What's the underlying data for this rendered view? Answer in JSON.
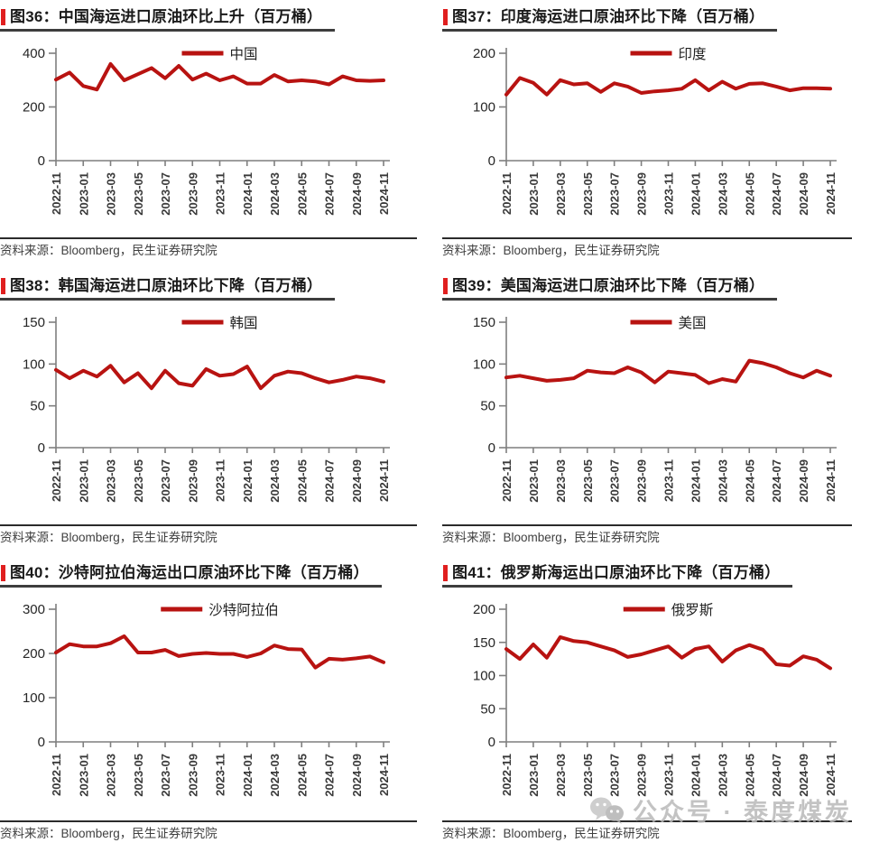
{
  "watermark": {
    "icon": "wechat-icon",
    "text": "公众号 · 泰度煤炭"
  },
  "x_months": [
    "2022-11",
    "2022-12",
    "2023-01",
    "2023-02",
    "2023-03",
    "2023-04",
    "2023-05",
    "2023-06",
    "2023-07",
    "2023-08",
    "2023-09",
    "2023-10",
    "2023-11",
    "2023-12",
    "2024-01",
    "2024-02",
    "2024-03",
    "2024-04",
    "2024-05",
    "2024-06",
    "2024-07",
    "2024-08",
    "2024-09",
    "2024-10",
    "2024-11"
  ],
  "x_visible_tick_labels": [
    "2022-11",
    "2023-01",
    "2023-03",
    "2023-05",
    "2023-07",
    "2023-09",
    "2023-11",
    "2024-01",
    "2024-03",
    "2024-05",
    "2024-07",
    "2024-09",
    "2024-11"
  ],
  "chart_data": [
    {
      "type": "line",
      "title": "图36：中国海运进口原油环比上升（百万桶）",
      "series_name": "中国",
      "values": [
        302,
        328,
        278,
        265,
        360,
        299,
        322,
        345,
        307,
        353,
        302,
        324,
        299,
        314,
        287,
        287,
        319,
        295,
        299,
        295,
        284,
        314,
        299,
        297,
        299
      ],
      "ylim": [
        0,
        400
      ],
      "yticks": [
        0,
        200,
        400
      ],
      "xtick_step": 2,
      "line_color": "#b81311",
      "legend_position": "top-center",
      "grid": false,
      "source": "资料来源：Bloomberg，民生证券研究院"
    },
    {
      "type": "line",
      "title": "图37：印度海运进口原油环比下降（百万桶）",
      "series_name": "印度",
      "values": [
        123,
        154,
        145,
        123,
        150,
        142,
        144,
        128,
        144,
        138,
        126,
        129,
        131,
        134,
        150,
        131,
        147,
        134,
        143,
        144,
        138,
        131,
        135,
        135,
        134
      ],
      "ylim": [
        0,
        200
      ],
      "yticks": [
        0,
        100,
        200
      ],
      "xtick_step": 2,
      "line_color": "#b81311",
      "legend_position": "top-center",
      "grid": false,
      "source": "资料来源：Bloomberg，民生证券研究院"
    },
    {
      "type": "line",
      "title": "图38：韩国海运进口原油环比下降（百万桶）",
      "series_name": "韩国",
      "values": [
        93,
        83,
        92,
        85,
        98,
        78,
        89,
        71,
        92,
        77,
        74,
        94,
        86,
        88,
        97,
        71,
        86,
        91,
        89,
        83,
        78,
        81,
        85,
        83,
        79
      ],
      "ylim": [
        0,
        150
      ],
      "yticks": [
        0,
        50,
        100,
        150
      ],
      "xtick_step": 2,
      "line_color": "#b81311",
      "legend_position": "top-center",
      "grid": false,
      "source": "资料来源：Bloomberg，民生证券研究院"
    },
    {
      "type": "line",
      "title": "图39：美国海运进口原油环比下降（百万桶）",
      "series_name": "美国",
      "values": [
        84,
        86,
        83,
        80,
        81,
        83,
        92,
        90,
        89,
        96,
        90,
        78,
        91,
        89,
        87,
        77,
        82,
        79,
        104,
        101,
        96,
        89,
        84,
        92,
        86
      ],
      "ylim": [
        0,
        150
      ],
      "yticks": [
        0,
        50,
        100,
        150
      ],
      "xtick_step": 2,
      "line_color": "#b81311",
      "legend_position": "top-center",
      "grid": false,
      "source": "资料来源：Bloomberg，民生证券研究院"
    },
    {
      "type": "line",
      "title": "图40：沙特阿拉伯海运出口原油环比下降（百万桶）",
      "series_name": "沙特阿拉伯",
      "values": [
        202,
        221,
        216,
        216,
        223,
        239,
        202,
        202,
        208,
        194,
        199,
        201,
        199,
        199,
        192,
        200,
        218,
        210,
        209,
        168,
        188,
        186,
        189,
        193,
        180
      ],
      "ylim": [
        0,
        300
      ],
      "yticks": [
        0,
        100,
        200,
        300
      ],
      "xtick_step": 2,
      "line_color": "#b81311",
      "legend_position": "top-center",
      "grid": false,
      "source": "资料来源：Bloomberg，民生证券研究院"
    },
    {
      "type": "line",
      "title": "图41：俄罗斯海运出口原油环比下降（百万桶）",
      "series_name": "俄罗斯",
      "values": [
        140,
        125,
        147,
        127,
        158,
        152,
        150,
        144,
        138,
        128,
        132,
        138,
        144,
        127,
        140,
        144,
        121,
        138,
        146,
        139,
        117,
        115,
        129,
        124,
        111
      ],
      "ylim": [
        0,
        200
      ],
      "yticks": [
        0,
        50,
        100,
        150,
        200
      ],
      "xtick_step": 2,
      "line_color": "#b81311",
      "legend_position": "top-center",
      "grid": false,
      "source": "资料来源：Bloomberg，民生证券研究院"
    }
  ]
}
